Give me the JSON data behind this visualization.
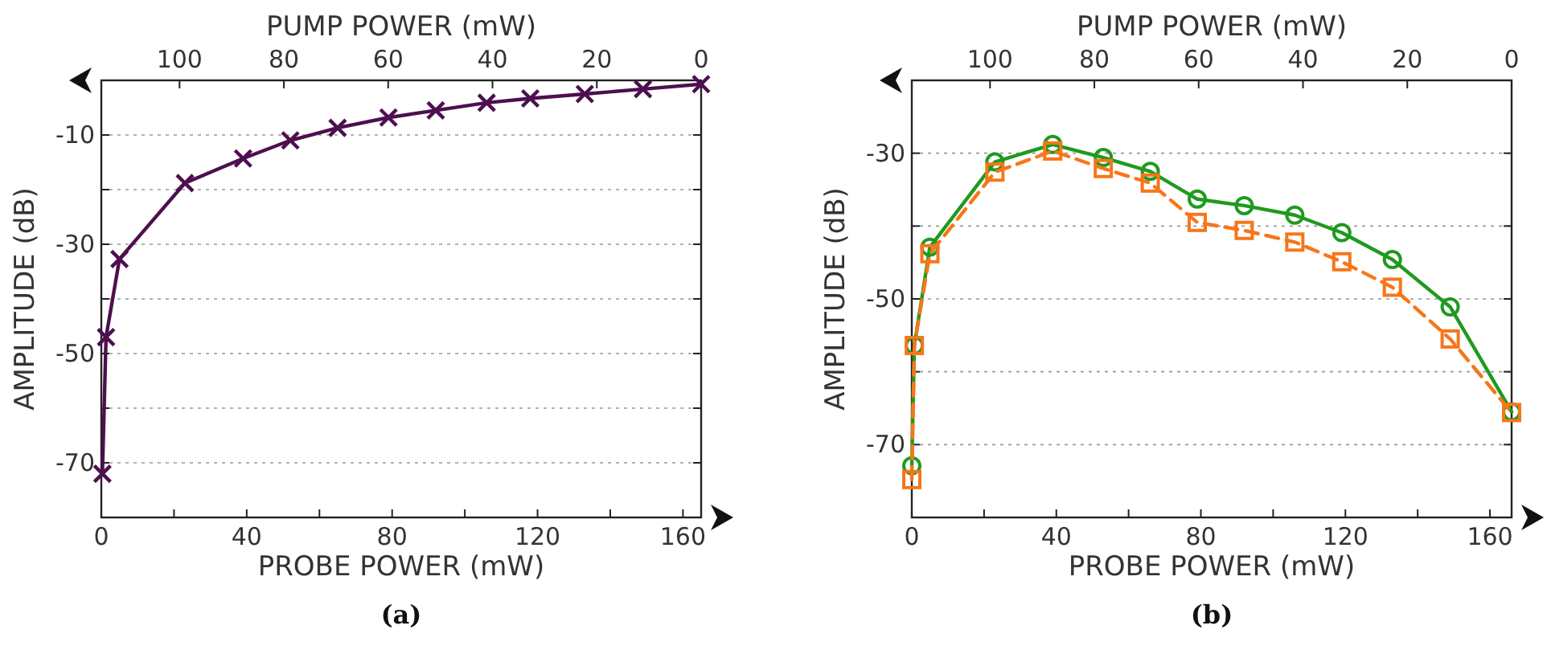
{
  "chart_data": [
    {
      "type": "line",
      "xlabel": "PROBE POWER (mW)",
      "ylabel": "AMPLITUDE (dB)",
      "x2label": "PUMP POWER (mW)",
      "annotations": [
        "(a)"
      ],
      "xlim": [
        0,
        165
      ],
      "xticks": [
        0,
        {
          "value": 20,
          "label": null
        },
        40,
        {
          "value": 60,
          "label": null
        },
        80,
        {
          "value": 100,
          "label": null
        },
        120,
        {
          "value": 140,
          "label": null
        },
        160
      ],
      "x2lim": [
        115,
        0
      ],
      "x2ticks": [
        100,
        80,
        60,
        40,
        20,
        0
      ],
      "ylim": [
        -80,
        0
      ],
      "yticks": [
        -70,
        {
          "value": -60,
          "label": null
        },
        -50,
        {
          "value": -40,
          "label": null
        },
        -30,
        {
          "value": -20,
          "label": null
        },
        -10
      ],
      "grid": "y",
      "marker": "cross",
      "line_style": "solid",
      "series": [
        {
          "color": "#4d0f4f",
          "x": [
            0.3,
            1.3,
            5,
            23,
            39,
            52,
            65,
            79,
            92,
            106,
            118,
            133,
            149,
            165
          ],
          "values": [
            -72,
            -47,
            -32.7,
            -18.8,
            -14.3,
            -11,
            -8.7,
            -6.8,
            -5.5,
            -4.1,
            -3.3,
            -2.5,
            -1.6,
            -0.7
          ]
        }
      ]
    },
    {
      "type": "line",
      "xlabel": "PROBE POWER (mW)",
      "ylabel": "AMPLITUDE (dB)",
      "x2label": "PUMP POWER (mW)",
      "annotations": [
        "(b)"
      ],
      "xlim": [
        0,
        166
      ],
      "xticks": [
        0,
        {
          "value": 20,
          "label": null
        },
        40,
        {
          "value": 60,
          "label": null
        },
        80,
        {
          "value": 100,
          "label": null
        },
        120,
        {
          "value": 140,
          "label": null
        },
        160
      ],
      "x2lim": [
        115,
        0
      ],
      "x2ticks": [
        100,
        80,
        60,
        40,
        20,
        0
      ],
      "ylim": [
        -80,
        -20
      ],
      "yticks": [
        -70,
        {
          "value": -60,
          "label": null
        },
        -50,
        {
          "value": -40,
          "label": null
        },
        -30
      ],
      "grid": "y",
      "series": [
        {
          "color": "#1f9a1f",
          "marker": "circle",
          "line_style": "solid",
          "x": [
            0,
            0.7,
            5,
            23,
            39,
            53,
            66,
            79,
            92,
            106,
            119,
            133,
            149,
            166
          ],
          "values": [
            -72.9,
            -56.4,
            -42.9,
            -31.2,
            -28.8,
            -30.6,
            -32.5,
            -36.3,
            -37.2,
            -38.5,
            -40.9,
            -44.6,
            -51.1,
            -65.5
          ]
        },
        {
          "color": "#f7761a",
          "marker": "square",
          "line_style": "dashed",
          "x": [
            0,
            0.7,
            5,
            23,
            39,
            53,
            66,
            79,
            92,
            106,
            119,
            133,
            149,
            166
          ],
          "values": [
            -74.8,
            -56.4,
            -43.8,
            -32.6,
            -29.7,
            -32.1,
            -34.1,
            -39.5,
            -40.6,
            -42.2,
            -44.9,
            -48.4,
            -55.5,
            -65.6
          ]
        }
      ]
    }
  ]
}
